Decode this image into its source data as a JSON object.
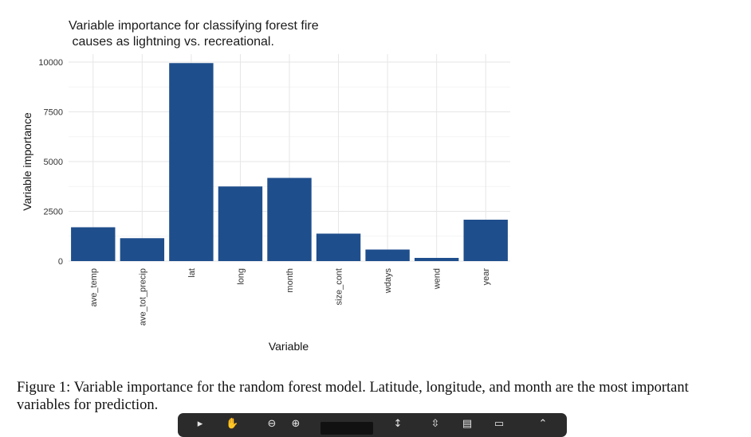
{
  "chart_data": {
    "type": "bar",
    "title_lines": [
      "Variable importance for classifying forest fire",
      " causes as lightning vs. recreational."
    ],
    "xlabel": "Variable",
    "ylabel": "Variable importance",
    "categories": [
      "ave_temp",
      "ave_tot_precip",
      "lat",
      "long",
      "month",
      "size_cont",
      "wdays",
      "wend",
      "year"
    ],
    "values": [
      1700,
      1150,
      9950,
      3750,
      4180,
      1380,
      580,
      160,
      2080
    ],
    "ylim": [
      0,
      10000
    ],
    "yticks": [
      0,
      2500,
      5000,
      7500,
      10000
    ],
    "ytick_labels": [
      "0",
      "2500",
      "5000",
      "7500",
      "10000"
    ],
    "grid": true,
    "bar_color": "#1f4e8c"
  },
  "caption": "Figure 1: Variable importance for the random forest model. Latitude, longitude, and month are the most important variables for prediction.",
  "toolbar": {
    "icons": [
      "cursor-icon",
      "hand-icon",
      "zoom-out-icon",
      "zoom-in-icon",
      "page-field",
      "fit-width-icon",
      "fit-page-icon",
      "save-icon",
      "print-icon",
      "expand-icon"
    ]
  }
}
